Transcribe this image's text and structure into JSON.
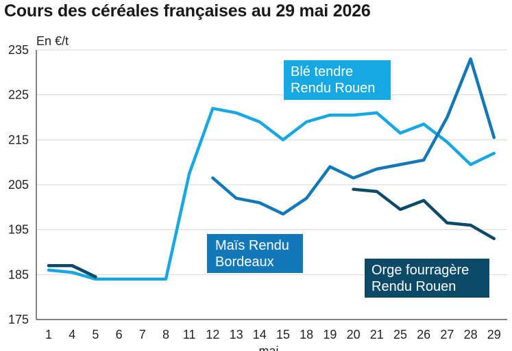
{
  "chart_data": {
    "type": "line",
    "title": "Cours des céréales françaises au 29 mai 2026",
    "ylabel": "En €/t",
    "xlabel": "mai",
    "ylim": [
      175,
      235
    ],
    "yticks": [
      175,
      185,
      195,
      205,
      215,
      225,
      235
    ],
    "grid": "horizontal",
    "categories": [
      "1",
      "4",
      "5",
      "6",
      "7",
      "8",
      "11",
      "12",
      "13",
      "14",
      "15",
      "18",
      "19",
      "20",
      "21",
      "25",
      "26",
      "27",
      "28",
      "29"
    ],
    "series": [
      {
        "name": "Blé tendre Rendu Rouen",
        "label_lines": [
          "Blé tendre",
          "Rendu Rouen"
        ],
        "color": "#17a8e3",
        "values": [
          186,
          185.5,
          184,
          184,
          184,
          184,
          207.5,
          222,
          221,
          219,
          215,
          219,
          220.5,
          220.5,
          221,
          216.5,
          218.5,
          214.5,
          209.5,
          212
        ]
      },
      {
        "name": "Maïs Rendu Bordeaux",
        "label_lines": [
          "Maïs Rendu",
          "Bordeaux"
        ],
        "color": "#1378b8",
        "values": [
          187,
          187,
          184.5,
          null,
          null,
          null,
          null,
          206.5,
          202,
          201,
          198.5,
          202,
          209,
          206.5,
          208.5,
          209.5,
          210.5,
          220,
          233,
          215.5
        ]
      },
      {
        "name": "Orge fourragère Rendu Rouen",
        "label_lines": [
          "Orge fourragère",
          "Rendu Rouen"
        ],
        "color": "#0c4a68",
        "values": [
          187,
          187,
          184.5,
          null,
          null,
          null,
          null,
          null,
          null,
          null,
          null,
          null,
          null,
          204,
          203.5,
          199.5,
          201.5,
          196.5,
          196,
          193
        ]
      }
    ]
  }
}
